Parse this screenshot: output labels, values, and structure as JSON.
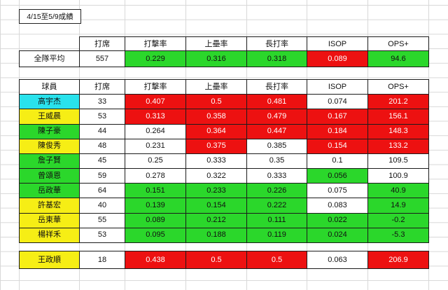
{
  "title": "4/15至5/9成績",
  "colors": {
    "white": "#ffffff",
    "green": "#2bd72b",
    "red": "#ed1111",
    "yellow": "#f6ee15",
    "cyan": "#29e2ec"
  },
  "summary": {
    "headers": [
      "打席",
      "打擊率",
      "上壘率",
      "長打率",
      "ISOP",
      "OPS+"
    ],
    "row": {
      "label": "全隊平均",
      "label_bg": "white",
      "cells": [
        {
          "v": "557",
          "bg": "white"
        },
        {
          "v": "0.229",
          "bg": "green"
        },
        {
          "v": "0.316",
          "bg": "green"
        },
        {
          "v": "0.318",
          "bg": "green"
        },
        {
          "v": "0.089",
          "bg": "red"
        },
        {
          "v": "94.6",
          "bg": "green"
        }
      ]
    }
  },
  "players": {
    "headers": [
      "球員",
      "打席",
      "打擊率",
      "上壘率",
      "長打率",
      "ISOP",
      "OPS+"
    ],
    "rows": [
      {
        "name": "高宇杰",
        "name_bg": "cyan",
        "cells": [
          {
            "v": "33",
            "bg": "white"
          },
          {
            "v": "0.407",
            "bg": "red"
          },
          {
            "v": "0.5",
            "bg": "red"
          },
          {
            "v": "0.481",
            "bg": "red"
          },
          {
            "v": "0.074",
            "bg": "white"
          },
          {
            "v": "201.2",
            "bg": "red"
          }
        ]
      },
      {
        "name": "王威晨",
        "name_bg": "yellow",
        "cells": [
          {
            "v": "53",
            "bg": "white"
          },
          {
            "v": "0.313",
            "bg": "red"
          },
          {
            "v": "0.358",
            "bg": "red"
          },
          {
            "v": "0.479",
            "bg": "red"
          },
          {
            "v": "0.167",
            "bg": "red"
          },
          {
            "v": "156.1",
            "bg": "red"
          }
        ]
      },
      {
        "name": "陳子豪",
        "name_bg": "green",
        "cells": [
          {
            "v": "44",
            "bg": "white"
          },
          {
            "v": "0.264",
            "bg": "white"
          },
          {
            "v": "0.364",
            "bg": "red"
          },
          {
            "v": "0.447",
            "bg": "red"
          },
          {
            "v": "0.184",
            "bg": "red"
          },
          {
            "v": "148.3",
            "bg": "red"
          }
        ]
      },
      {
        "name": "陳俊秀",
        "name_bg": "yellow",
        "cells": [
          {
            "v": "48",
            "bg": "white"
          },
          {
            "v": "0.231",
            "bg": "white"
          },
          {
            "v": "0.375",
            "bg": "red"
          },
          {
            "v": "0.385",
            "bg": "white"
          },
          {
            "v": "0.154",
            "bg": "red"
          },
          {
            "v": "133.2",
            "bg": "red"
          }
        ]
      },
      {
        "name": "詹子賢",
        "name_bg": "green",
        "cells": [
          {
            "v": "45",
            "bg": "white"
          },
          {
            "v": "0.25",
            "bg": "white"
          },
          {
            "v": "0.333",
            "bg": "white"
          },
          {
            "v": "0.35",
            "bg": "white"
          },
          {
            "v": "0.1",
            "bg": "white"
          },
          {
            "v": "109.5",
            "bg": "white"
          }
        ]
      },
      {
        "name": "曾頌恩",
        "name_bg": "green",
        "cells": [
          {
            "v": "59",
            "bg": "white"
          },
          {
            "v": "0.278",
            "bg": "white"
          },
          {
            "v": "0.322",
            "bg": "white"
          },
          {
            "v": "0.333",
            "bg": "white"
          },
          {
            "v": "0.056",
            "bg": "green"
          },
          {
            "v": "100.9",
            "bg": "white"
          }
        ]
      },
      {
        "name": "岳政華",
        "name_bg": "green",
        "cells": [
          {
            "v": "64",
            "bg": "white"
          },
          {
            "v": "0.151",
            "bg": "green"
          },
          {
            "v": "0.233",
            "bg": "green"
          },
          {
            "v": "0.226",
            "bg": "green"
          },
          {
            "v": "0.075",
            "bg": "white"
          },
          {
            "v": "40.9",
            "bg": "green"
          }
        ]
      },
      {
        "name": "許基宏",
        "name_bg": "yellow",
        "cells": [
          {
            "v": "40",
            "bg": "white"
          },
          {
            "v": "0.139",
            "bg": "green"
          },
          {
            "v": "0.154",
            "bg": "green"
          },
          {
            "v": "0.222",
            "bg": "green"
          },
          {
            "v": "0.083",
            "bg": "white"
          },
          {
            "v": "14.9",
            "bg": "green"
          }
        ]
      },
      {
        "name": "岳東華",
        "name_bg": "yellow",
        "cells": [
          {
            "v": "55",
            "bg": "white"
          },
          {
            "v": "0.089",
            "bg": "green"
          },
          {
            "v": "0.212",
            "bg": "green"
          },
          {
            "v": "0.111",
            "bg": "green"
          },
          {
            "v": "0.022",
            "bg": "green"
          },
          {
            "v": "-0.2",
            "bg": "green"
          }
        ]
      },
      {
        "name": "楊祥禾",
        "name_bg": "yellow",
        "cells": [
          {
            "v": "53",
            "bg": "white"
          },
          {
            "v": "0.095",
            "bg": "green"
          },
          {
            "v": "0.188",
            "bg": "green"
          },
          {
            "v": "0.119",
            "bg": "green"
          },
          {
            "v": "0.024",
            "bg": "green"
          },
          {
            "v": "-5.3",
            "bg": "green"
          }
        ]
      }
    ]
  },
  "extra_row": {
    "name": "王政順",
    "name_bg": "yellow",
    "cells": [
      {
        "v": "18",
        "bg": "white"
      },
      {
        "v": "0.438",
        "bg": "red"
      },
      {
        "v": "0.5",
        "bg": "red"
      },
      {
        "v": "0.5",
        "bg": "red"
      },
      {
        "v": "0.063",
        "bg": "white"
      },
      {
        "v": "206.9",
        "bg": "red"
      }
    ]
  }
}
